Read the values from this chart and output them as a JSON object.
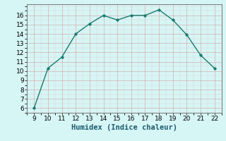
{
  "x": [
    9,
    10,
    11,
    12,
    13,
    14,
    15,
    16,
    17,
    18,
    19,
    20,
    21,
    22
  ],
  "y": [
    6,
    10.3,
    11.5,
    14,
    15.1,
    16,
    15.5,
    16,
    16,
    16.6,
    15.5,
    13.9,
    11.7,
    10.3
  ],
  "line_color": "#1a7a6e",
  "marker": "o",
  "marker_size": 2.5,
  "bg_color": "#d6f5f5",
  "xlabel": "Humidex (Indice chaleur)",
  "xlim": [
    8.5,
    22.5
  ],
  "ylim": [
    5.5,
    17.2
  ],
  "xticks": [
    9,
    10,
    11,
    12,
    13,
    14,
    15,
    16,
    17,
    18,
    19,
    20,
    21,
    22
  ],
  "yticks": [
    6,
    7,
    8,
    9,
    10,
    11,
    12,
    13,
    14,
    15,
    16
  ],
  "xlabel_fontsize": 7.5,
  "tick_fontsize": 6.5,
  "grid_major_color": "#d4b0b0",
  "grid_minor_color": "#e0d0d0",
  "line_width": 1.0
}
